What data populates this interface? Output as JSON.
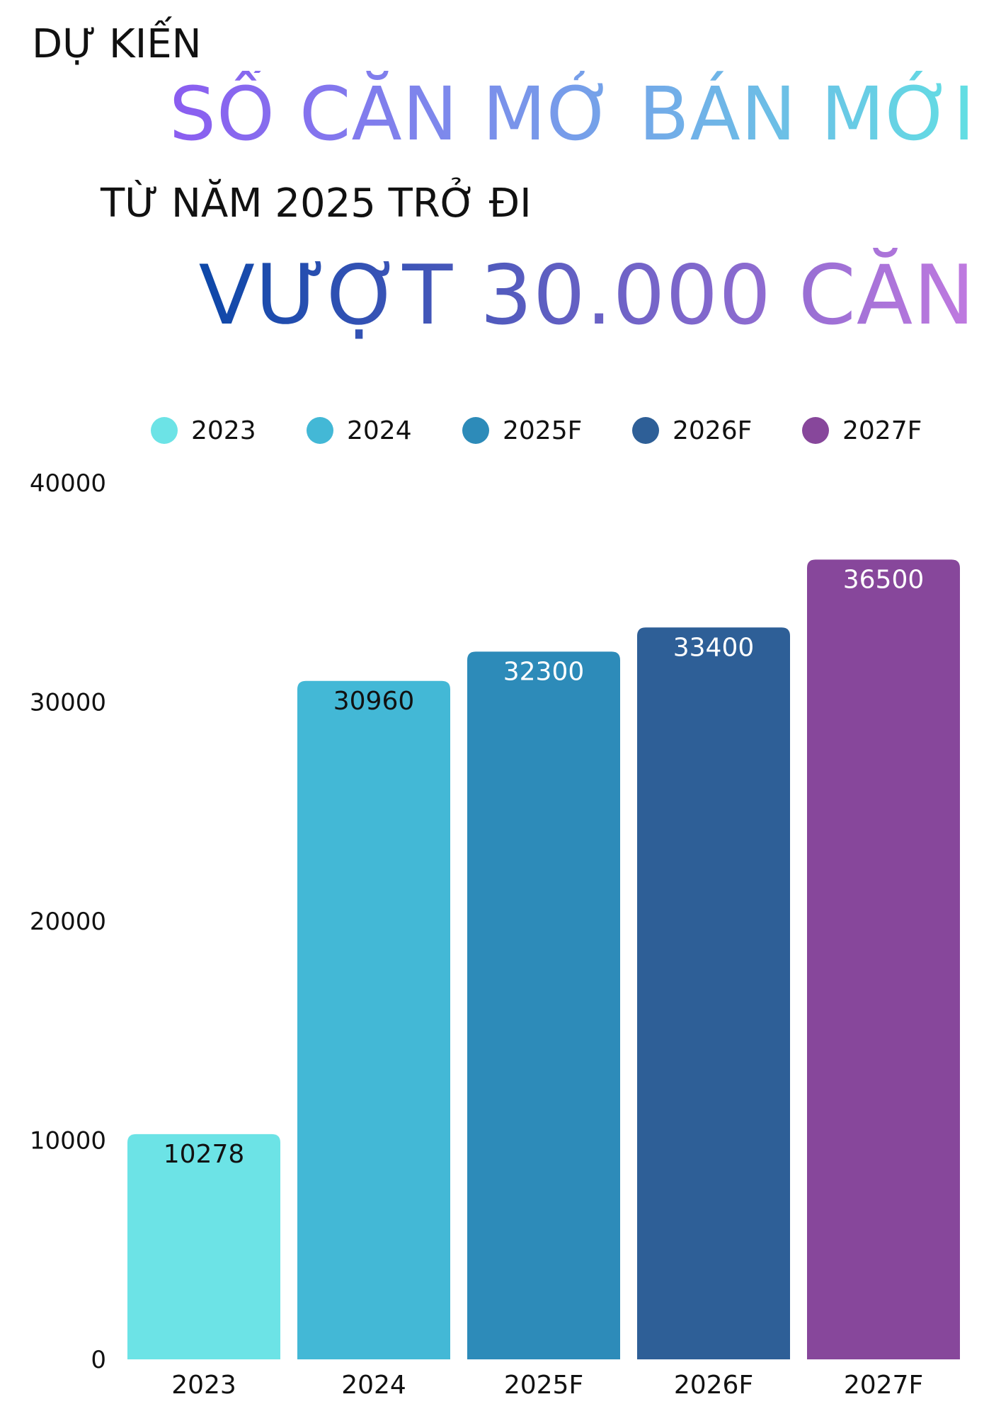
{
  "headline": {
    "line1": "DỰ KIẾN",
    "line2": "SỐ CĂN MỞ BÁN MỚI",
    "line3": "TỪ NĂM 2025 TRỞ ĐI",
    "line4": "VƯỢT 30.000 CĂN",
    "line2_gradient": [
      "#8b5cf0",
      "#62dfe3"
    ],
    "line4_gradient": [
      "#0d47a8",
      "#c07ae0"
    ]
  },
  "chart_data": {
    "type": "bar",
    "title": "",
    "xlabel": "",
    "ylabel": "",
    "categories": [
      "2023",
      "2024",
      "2025F",
      "2026F",
      "2027F"
    ],
    "values": [
      10278,
      30960,
      32300,
      33400,
      36500
    ],
    "data_labels": [
      "10278",
      "30960",
      "32300",
      "33400",
      "36500"
    ],
    "colors": [
      "#6ce3e6",
      "#43b8d6",
      "#2d8bb9",
      "#2e5f97",
      "#87479b"
    ],
    "label_colors": [
      "#111111",
      "#111111",
      "#ffffff",
      "#ffffff",
      "#ffffff"
    ],
    "legend": [
      "2023",
      "2024",
      "2025F",
      "2026F",
      "2027F"
    ],
    "legend_position": "top",
    "ylim": [
      0,
      40000
    ],
    "yticks": [
      "0",
      "10000",
      "20000",
      "30000",
      "40000"
    ],
    "grid": false
  }
}
